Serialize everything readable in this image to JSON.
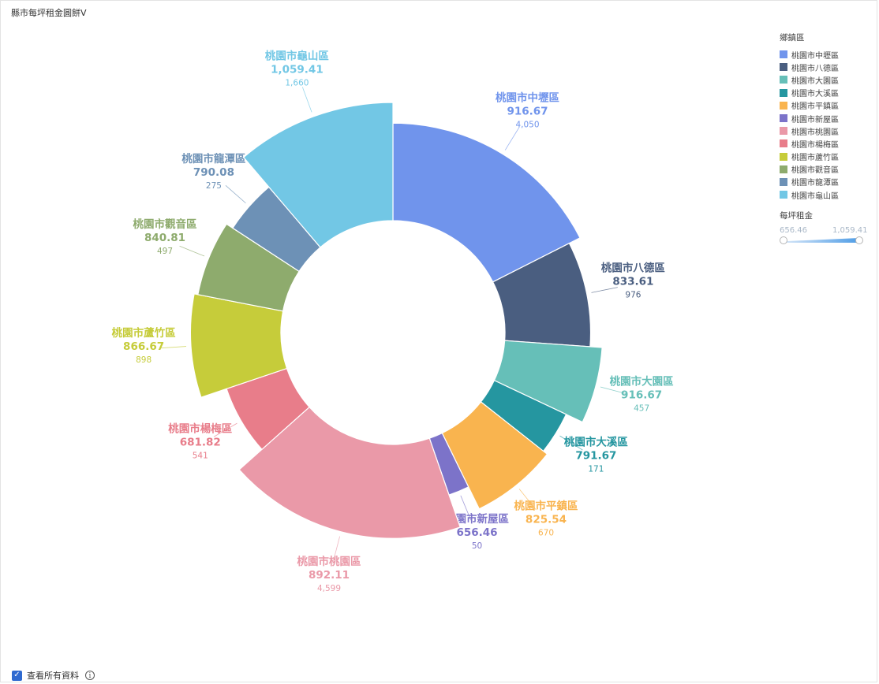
{
  "title": "縣市每坪租金圓餅V",
  "legend": {
    "title": "鄉鎮區"
  },
  "range": {
    "title": "每坪租金",
    "min_label": "656.46",
    "max_label": "1,059.41",
    "min": 656.46,
    "max": 1059.41
  },
  "footer": {
    "checkbox_label": "查看所有資料",
    "checked": true,
    "check_glyph": "✓",
    "info_glyph": "i"
  },
  "chart_data": {
    "type": "pie",
    "title": "縣市每坪租金圓餅V",
    "subtype": "nightingale-donut",
    "angle_field": "count",
    "radius_field": "每坪租金",
    "slices": [
      {
        "name": "桃園市中壢區",
        "value": 916.67,
        "value_label": "916.67",
        "count": 4050,
        "count_label": "4,050",
        "color": "#7094EC"
      },
      {
        "name": "桃園市八德區",
        "value": 833.61,
        "value_label": "833.61",
        "count": 976,
        "count_label": "976",
        "color": "#4A5E80"
      },
      {
        "name": "桃園市大園區",
        "value": 916.67,
        "value_label": "916.67",
        "count": 457,
        "count_label": "457",
        "color": "#66BFB8"
      },
      {
        "name": "桃園市大溪區",
        "value": 791.67,
        "value_label": "791.67",
        "count": 171,
        "count_label": "171",
        "color": "#2596A0"
      },
      {
        "name": "桃園市平鎮區",
        "value": 825.54,
        "value_label": "825.54",
        "count": 670,
        "count_label": "670",
        "color": "#F9B44F"
      },
      {
        "name": "桃園市新屋區",
        "value": 656.46,
        "value_label": "656.46",
        "count": 50,
        "count_label": "50",
        "color": "#7C73C9"
      },
      {
        "name": "桃園市桃園區",
        "value": 892.11,
        "value_label": "892.11",
        "count": 4599,
        "count_label": "4,599",
        "color": "#EA99A8"
      },
      {
        "name": "桃園市楊梅區",
        "value": 681.82,
        "value_label": "681.82",
        "count": 541,
        "count_label": "541",
        "color": "#E87D8A"
      },
      {
        "name": "桃園市蘆竹區",
        "value": 866.67,
        "value_label": "866.67",
        "count": 898,
        "count_label": "898",
        "color": "#C6CC3A"
      },
      {
        "name": "桃園市觀音區",
        "value": 840.81,
        "value_label": "840.81",
        "count": 497,
        "count_label": "497",
        "color": "#8EAB6D"
      },
      {
        "name": "桃園市龍潭區",
        "value": 790.08,
        "value_label": "790.08",
        "count": 275,
        "count_label": "275",
        "color": "#6D91B6"
      },
      {
        "name": "桃園市龜山區",
        "value": 1059.41,
        "value_label": "1,059.41",
        "count": 1660,
        "count_label": "1,660",
        "color": "#72C7E5"
      }
    ]
  }
}
